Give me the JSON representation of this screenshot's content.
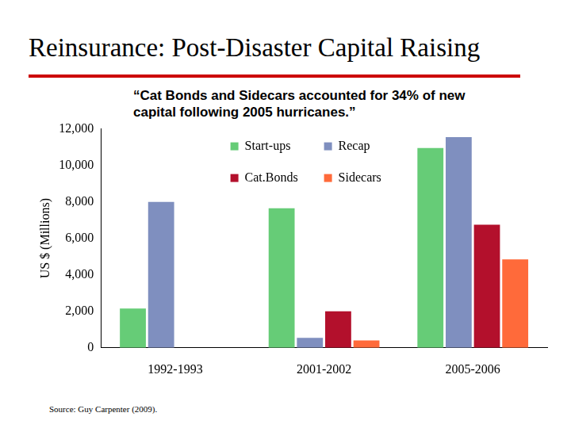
{
  "chart_data": {
    "type": "bar",
    "title": "Reinsurance: Post-Disaster Capital Raising",
    "subtitle": "“Cat Bonds and Sidecars accounted for 34% of new capital following 2005 hurricanes.”",
    "y_label": "US $ (Millions)",
    "source": "Source: Guy Carpenter (2009).",
    "categories": [
      "1992-1993",
      "2001-2002",
      "2005-2006"
    ],
    "series": [
      {
        "name": "Start-ups",
        "color": "#66cc77",
        "values": [
          2150,
          7650,
          10950
        ]
      },
      {
        "name": "Recap",
        "color": "#7f8fbf",
        "values": [
          8000,
          550,
          11550
        ]
      },
      {
        "name": "Cat.Bonds",
        "color": "#b3102c",
        "values": [
          null,
          2000,
          6750
        ]
      },
      {
        "name": "Sidecars",
        "color": "#ff6a3a",
        "values": [
          null,
          400,
          4850
        ]
      }
    ],
    "ylim": [
      0,
      12000
    ],
    "yticks": [
      0,
      {
        "value": 2000,
        "label": "2,000"
      },
      {
        "value": 4000,
        "label": "4,000"
      },
      {
        "value": 6000,
        "label": "6,000"
      },
      {
        "value": 8000,
        "label": "8,000"
      },
      {
        "value": 10000,
        "label": "10,000"
      },
      {
        "value": 12000,
        "label": "12,000"
      }
    ],
    "grid": false,
    "legend": "top"
  }
}
